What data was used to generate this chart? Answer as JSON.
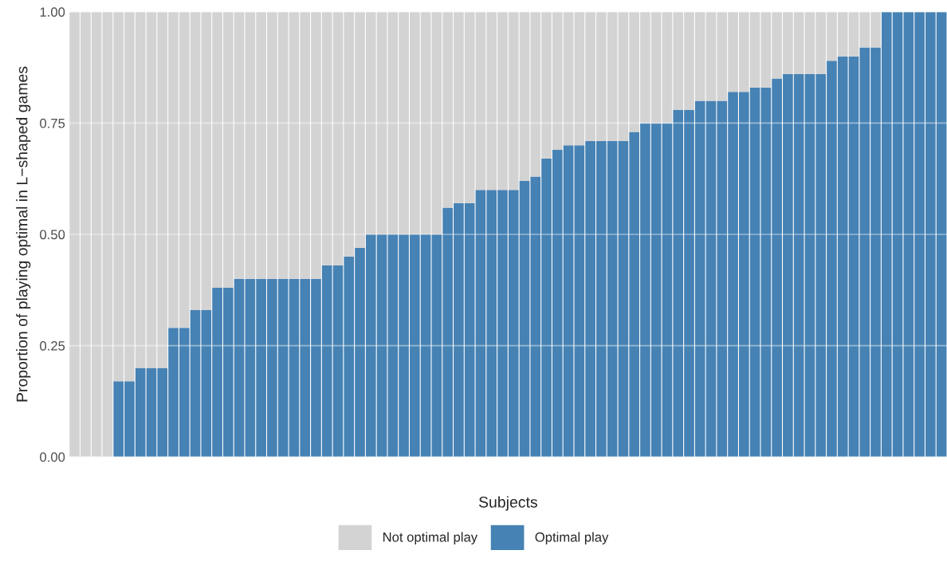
{
  "chart_data": {
    "type": "bar",
    "stacked": true,
    "xlabel": "Subjects",
    "ylabel": "Proportion of playing optimal in L−shaped games",
    "categories": [
      null,
      null,
      null,
      null,
      null,
      null,
      null,
      null,
      null,
      null,
      null,
      null,
      null,
      null,
      null,
      null,
      null,
      null,
      null,
      null,
      null,
      null,
      null,
      null,
      null,
      null,
      null,
      null,
      null,
      null,
      null,
      null,
      null,
      null,
      null,
      null,
      null,
      null,
      null,
      null,
      null,
      null,
      null,
      null,
      null,
      null,
      null,
      null,
      null,
      null,
      null,
      null,
      null,
      null,
      null,
      null,
      null,
      null,
      null,
      null,
      null,
      null,
      null,
      null,
      null,
      null,
      null,
      null,
      null,
      null,
      null,
      null,
      null,
      null,
      null,
      null,
      null,
      null,
      null,
      null
    ],
    "series": [
      {
        "name": "Optimal play",
        "color": "#4682b4",
        "values": [
          0,
          0,
          0,
          0,
          0.17,
          0.17,
          0.2,
          0.2,
          0.2,
          0.29,
          0.29,
          0.33,
          0.33,
          0.38,
          0.38,
          0.4,
          0.4,
          0.4,
          0.4,
          0.4,
          0.4,
          0.4,
          0.4,
          0.43,
          0.43,
          0.45,
          0.47,
          0.5,
          0.5,
          0.5,
          0.5,
          0.5,
          0.5,
          0.5,
          0.56,
          0.57,
          0.57,
          0.6,
          0.6,
          0.6,
          0.6,
          0.62,
          0.63,
          0.67,
          0.69,
          0.7,
          0.7,
          0.71,
          0.71,
          0.71,
          0.71,
          0.73,
          0.75,
          0.75,
          0.75,
          0.78,
          0.78,
          0.8,
          0.8,
          0.8,
          0.82,
          0.82,
          0.83,
          0.83,
          0.85,
          0.86,
          0.86,
          0.86,
          0.86,
          0.89,
          0.9,
          0.9,
          0.92,
          0.92,
          1,
          1,
          1,
          1,
          1,
          1
        ]
      },
      {
        "name": "Not optimal play",
        "color": "#d3d3d3",
        "values": [
          1,
          1,
          1,
          1,
          0.83,
          0.83,
          0.8,
          0.8,
          0.8,
          0.71,
          0.71,
          0.67,
          0.67,
          0.62,
          0.62,
          0.6,
          0.6,
          0.6,
          0.6,
          0.6,
          0.6,
          0.6,
          0.6,
          0.57,
          0.57,
          0.55,
          0.53,
          0.5,
          0.5,
          0.5,
          0.5,
          0.5,
          0.5,
          0.5,
          0.44,
          0.43,
          0.43,
          0.4,
          0.4,
          0.4,
          0.4,
          0.38,
          0.37,
          0.33,
          0.31,
          0.3,
          0.3,
          0.29,
          0.29,
          0.29,
          0.29,
          0.27,
          0.25,
          0.25,
          0.25,
          0.22,
          0.22,
          0.2,
          0.2,
          0.2,
          0.18,
          0.18,
          0.17,
          0.17,
          0.15,
          0.14,
          0.14,
          0.14,
          0.14,
          0.11,
          0.1,
          0.1,
          0.08,
          0.08,
          0,
          0,
          0,
          0,
          0,
          0
        ]
      }
    ],
    "ylim": [
      0,
      1
    ],
    "yticks": [
      {
        "value": 0,
        "label": "0.00"
      },
      {
        "value": 0.25,
        "label": "0.25"
      },
      {
        "value": 0.5,
        "label": "0.50"
      },
      {
        "value": 0.75,
        "label": "0.75"
      },
      {
        "value": 1,
        "label": "1.00"
      }
    ],
    "grid": "y",
    "legend": "bottom"
  }
}
